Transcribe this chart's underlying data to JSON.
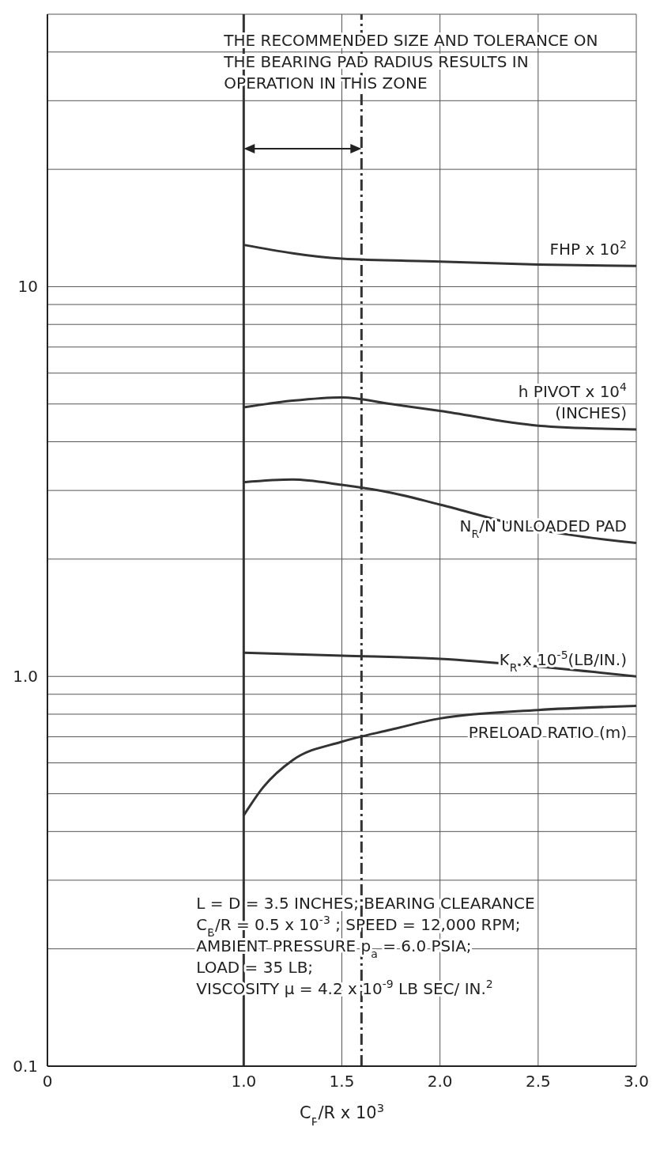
{
  "chart_data": {
    "type": "line",
    "xlabel": "C$_{P}$/R x 10$^{3}$",
    "xlim": [
      0,
      3
    ],
    "xticks": [
      {
        "value": 0,
        "label": "0"
      },
      {
        "value": 1,
        "label": "1.0"
      },
      1.5,
      {
        "value": 2,
        "label": "2.0"
      },
      2.5,
      {
        "value": 3,
        "label": "3.0"
      }
    ],
    "ylim": [
      0.1,
      50
    ],
    "log": "y",
    "yticks": [
      0.1,
      {
        "value": 0.2,
        "label": null
      },
      {
        "value": 0.3,
        "label": null
      },
      {
        "value": 0.4,
        "label": null
      },
      {
        "value": 0.5,
        "label": null
      },
      {
        "value": 0.6,
        "label": null
      },
      {
        "value": 0.7,
        "label": null
      },
      {
        "value": 0.8,
        "label": null
      },
      {
        "value": 0.9,
        "label": null
      },
      {
        "value": 1,
        "label": "1.0"
      },
      {
        "value": 2,
        "label": null
      },
      {
        "value": 3,
        "label": null
      },
      {
        "value": 4,
        "label": null
      },
      {
        "value": 5,
        "label": null
      },
      {
        "value": 6,
        "label": null
      },
      {
        "value": 7,
        "label": null
      },
      {
        "value": 8,
        "label": null
      },
      {
        "value": 9,
        "label": null
      },
      10,
      {
        "value": 20,
        "label": null
      },
      {
        "value": 30,
        "label": null
      },
      {
        "value": 40,
        "label": null
      }
    ],
    "grid": true,
    "marker": "none",
    "line_style": "solid",
    "series": [
      {
        "name": "FHP x 10$^{2}$",
        "color": "#333333",
        "x": [
          1,
          1.5,
          2,
          2.5,
          3
        ],
        "values": [
          12.8,
          11.8,
          11.6,
          11.4,
          11.3
        ]
      },
      {
        "name": "h PIVOT x 10$^{4}$\n(INCHES)",
        "color": "#333333",
        "x": [
          1,
          1.25,
          1.5,
          1.75,
          2,
          2.5,
          3
        ],
        "values": [
          4.9,
          5.1,
          5.2,
          5.0,
          4.8,
          4.4,
          4.3
        ]
      },
      {
        "name": "N$_{R}$/N UNLOADED PAD",
        "color": "#333333",
        "x": [
          1,
          1.25,
          1.5,
          1.75,
          2,
          2.5,
          3
        ],
        "values": [
          3.15,
          3.2,
          3.1,
          2.96,
          2.76,
          2.38,
          2.2
        ]
      },
      {
        "name": "K$_{R}$ x 10$^{-5}$(LB/IN.)",
        "color": "#333333",
        "x": [
          1,
          1.5,
          2,
          2.5,
          3
        ],
        "values": [
          1.15,
          1.13,
          1.11,
          1.06,
          1.0
        ]
      },
      {
        "name": "PRELOAD RATIO (m)",
        "color": "#333333",
        "x": [
          1,
          1.1,
          1.25,
          1.5,
          1.75,
          2,
          2.5,
          3
        ],
        "values": [
          0.44,
          0.52,
          0.61,
          0.68,
          0.73,
          0.78,
          0.82,
          0.84
        ]
      }
    ],
    "ref_lines": [
      {
        "axis": "x",
        "value": 1,
        "color": "#333333",
        "line_style": "solid"
      },
      {
        "axis": "x",
        "value": 1.6,
        "color": "#333333",
        "line_style": "dashed"
      }
    ],
    "annotations": [
      "THE RECOMMENDED SIZE AND TOLERANCE ON\nTHE BEARING PAD RADIUS RESULTS IN\nOPERATION IN THIS ZONE",
      "L = D = 3.5 INCHES;  BEARING CLEARANCE\nC$_{B}$/R = 0.5 x 10$^{-3}$ ; SPEED = 12,000 RPM;\nAMBIENT PRESSURE p$_{a}$ = 6.0 PSIA;\nLOAD = 35 LB;\nVISCOSITY μ = 4.2 x 10$^{-9}$ LB SEC/ IN.$^{2}$"
    ]
  }
}
